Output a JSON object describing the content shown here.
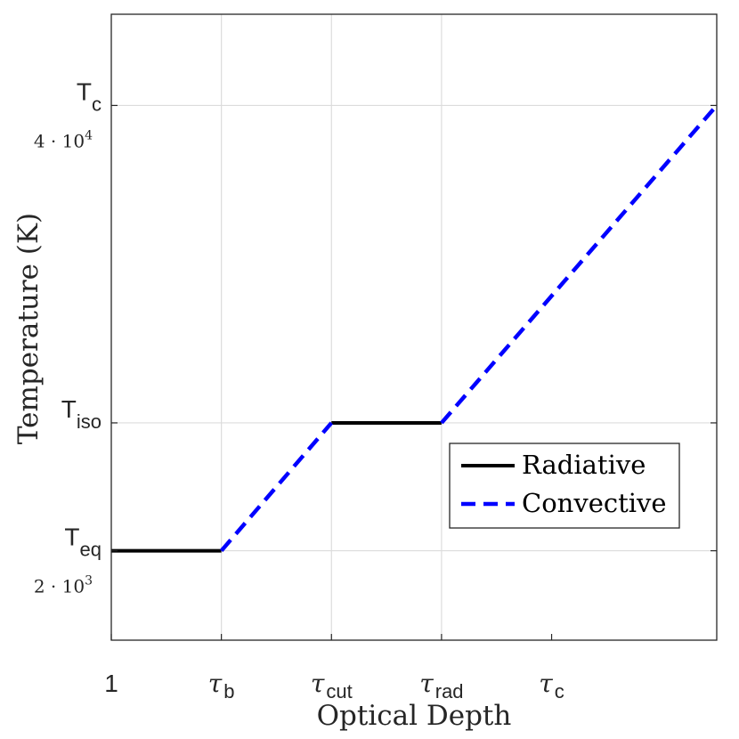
{
  "chart_data": {
    "type": "line",
    "xlabel": "Optical Depth",
    "ylabel": "Temperature (K)",
    "grid": true,
    "legend_position": "right",
    "x_ticks": [
      {
        "main": "1",
        "sub": ""
      },
      {
        "main": "τ",
        "sub": "b"
      },
      {
        "main": "τ",
        "sub": "cut"
      },
      {
        "main": "τ",
        "sub": "rad"
      },
      {
        "main": "τ",
        "sub": "c"
      }
    ],
    "y_ticks": [
      {
        "main": "T",
        "sub": "eq",
        "value_label": "2 · 10",
        "value_exp": "3"
      },
      {
        "main": "T",
        "sub": "iso",
        "value_label": "",
        "value_exp": ""
      },
      {
        "main": "T",
        "sub": "c",
        "value_label": "4 · 10",
        "value_exp": "4"
      }
    ],
    "y_tick_values": [
      1,
      2.43,
      5.98
    ],
    "ylim": [
      0,
      7
    ],
    "xlim": [
      0,
      5.5
    ],
    "series": [
      {
        "name": "Radiative",
        "style": "solid",
        "color": "#000000",
        "segments": [
          [
            [
              0,
              1
            ],
            [
              1,
              1
            ]
          ],
          [
            [
              2,
              2.43
            ],
            [
              3,
              2.43
            ]
          ]
        ]
      },
      {
        "name": "Convective",
        "style": "dashed",
        "color": "#0000ff",
        "segments": [
          [
            [
              1,
              1
            ],
            [
              2,
              2.43
            ]
          ],
          [
            [
              3,
              2.43
            ],
            [
              5.5,
              5.98
            ]
          ]
        ]
      }
    ],
    "legend": [
      {
        "label": "Radiative",
        "style": "solid",
        "color": "#000000"
      },
      {
        "label": "Convective",
        "style": "dashed",
        "color": "#0000ff"
      }
    ]
  }
}
